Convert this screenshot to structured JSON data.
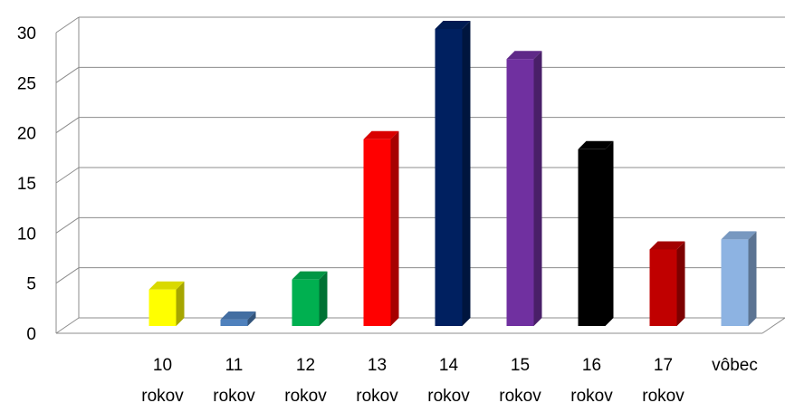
{
  "chart_data": {
    "type": "bar",
    "categories": [
      [
        "10",
        "rokov"
      ],
      [
        "11",
        "rokov"
      ],
      [
        "12",
        "rokov"
      ],
      [
        "13",
        "rokov"
      ],
      [
        "14",
        "rokov"
      ],
      [
        "15",
        "rokov"
      ],
      [
        "16",
        "rokov"
      ],
      [
        "17",
        "rokov"
      ],
      [
        "vôbec"
      ]
    ],
    "values": [
      4,
      1,
      5,
      19,
      30,
      27,
      18,
      8,
      9
    ],
    "colors": [
      "#ffff00",
      "#4f81bd",
      "#00b050",
      "#ff0000",
      "#002060",
      "#7030a0",
      "#000000",
      "#c00000",
      "#8db3e2"
    ],
    "ylim": [
      0,
      30
    ],
    "yticks": [
      0,
      5,
      10,
      15,
      20,
      25,
      30
    ],
    "grid": true,
    "legend": "none",
    "style": "3d-column"
  }
}
